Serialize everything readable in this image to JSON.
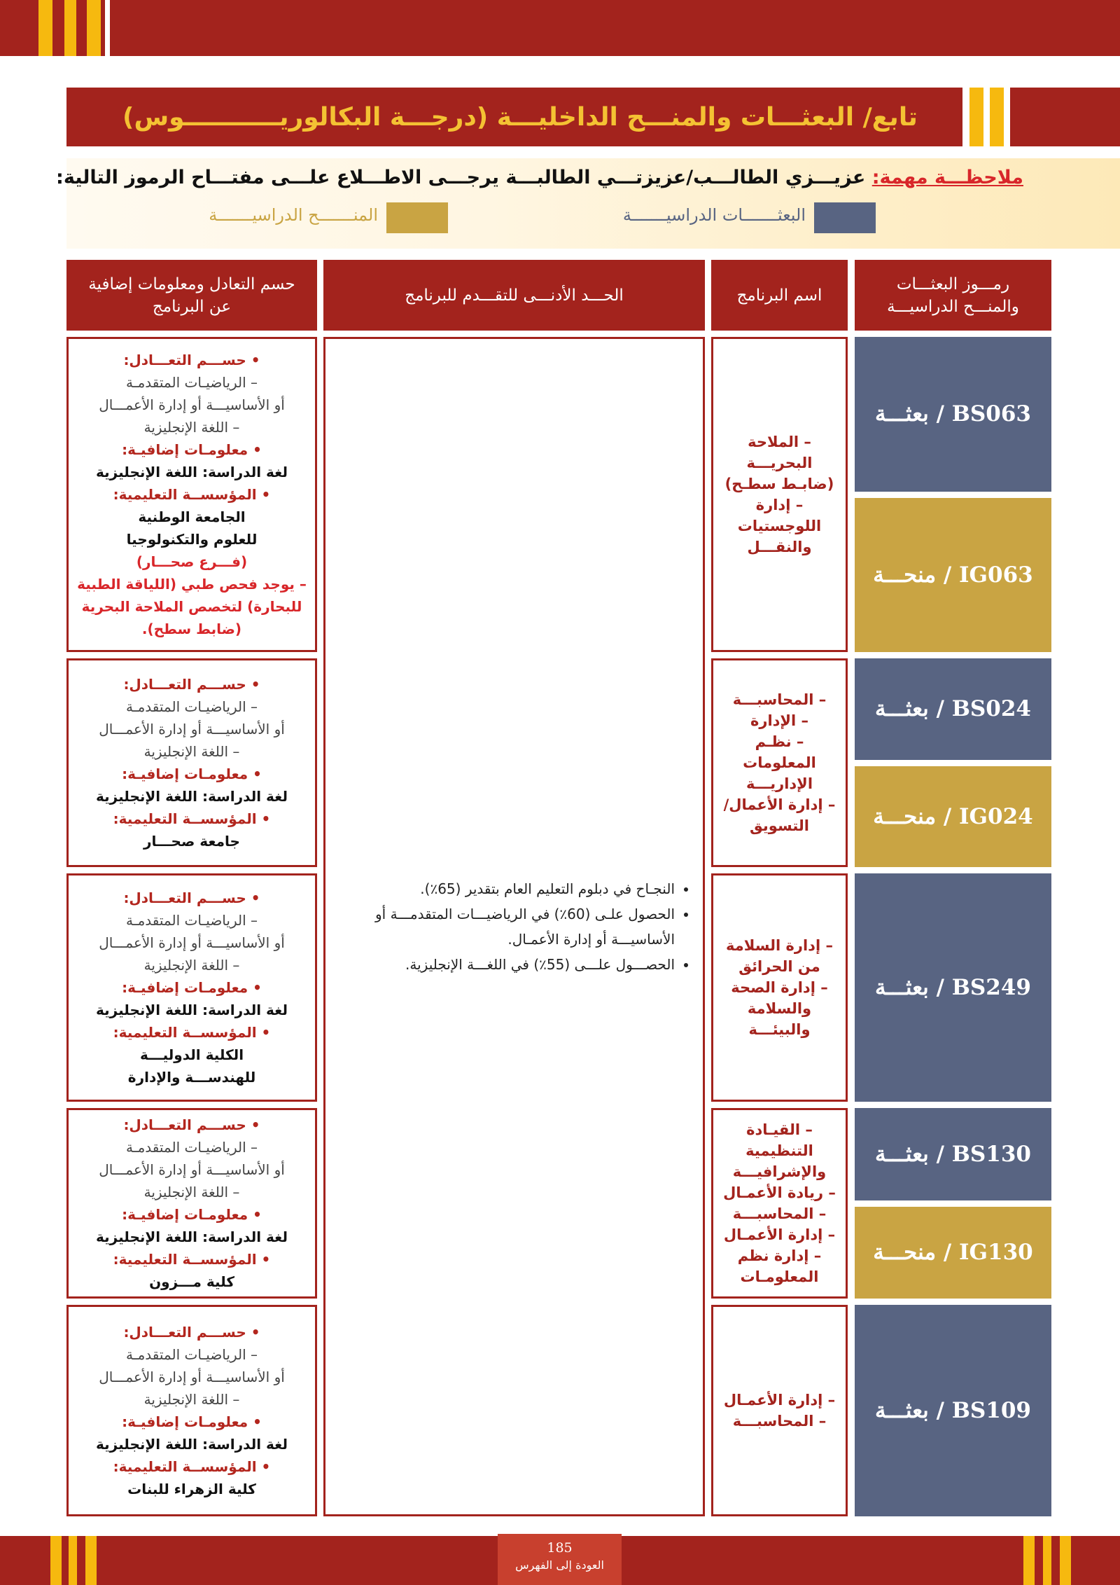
{
  "header": {
    "title": "تابع/ البعثـــات والمنـــح الداخليـــة (درجـــة البكالوريـــــــــــوس)"
  },
  "note": {
    "label": "ملاحظـــة مهمة:",
    "text": "عزيـــزي الطالـــب/عزيزتـــي الطالبـــة يرجـــى الاطـــلاع علـــى مفتـــاح الرموز التالية:",
    "legend": [
      {
        "text": "البعثـــــــات الدراسيـــــــة",
        "color": "#586482"
      },
      {
        "text": "المنـــــــح الدراسيـــــــة",
        "color": "#c9a443"
      }
    ]
  },
  "table": {
    "headers": [
      "رمـــوز البعثـــات والمنـــح الدراسيـــة",
      "اسم البرنامج",
      "الحـــد الأدنـــى للتقـــدم للبرنامج",
      "حسم التعادل ومعلومات إضافية عن البرنامج"
    ],
    "requirements": [
      "النجـاح في دبلوم التعليم العام بتقدير (65٪).",
      "الحصول علـى (60٪) في الرياضيـــات المتقدمـــة أو الأساسيـــة أو إدارة الأعمـال.",
      "الحصـــول علـــى (55٪) في اللغـــة الإنجليزية."
    ],
    "rows": [
      {
        "codes": [
          {
            "text": "BS063 / بعثـــة",
            "color": "#586482"
          },
          {
            "text": "IG063 / منحـــة",
            "color": "#c9a443"
          }
        ],
        "programs": [
          "– الملاحة البحريـــة",
          "(ضابـط سطـح)",
          "– إدارة اللوجستيات والنقـــل"
        ],
        "equivalence_label": "• حســـم التعـــادل:",
        "equivalence": [
          "– الرياضيـات المتقدمـة",
          "أو الأساسيـــة أو إدارة الأعمـــال",
          "– اللغة الإنجليزية"
        ],
        "additional_label": "• معلومـات إضافيـة:",
        "language": "لغة الدراسة: اللغة الإنجليزية",
        "institution_label": "• المؤسســة التعليمية:",
        "institution": [
          "الجامعة الوطنية",
          "للعلوم والتكنولوجيا"
        ],
        "notes": [
          "(فـــرع صحـــار)",
          "– يوجد فحص طبي (اللياقة الطبية للبحارة) لتخصص الملاحة البحرية (ضابط سطح)."
        ]
      },
      {
        "codes": [
          {
            "text": "BS024 / بعثـــة",
            "color": "#586482"
          },
          {
            "text": "IG024 / منحـــة",
            "color": "#c9a443"
          }
        ],
        "programs": [
          "– المحاسبـــة",
          "– الإدارة",
          "– نظـم المعلومات الإداريـــة",
          "– إدارة الأعمال/ التسويق"
        ],
        "equivalence_label": "• حســـم التعـــادل:",
        "equivalence": [
          "– الرياضيـات المتقدمـة",
          "أو الأساسيـــة أو إدارة الأعمـــال",
          "– اللغة الإنجليزية"
        ],
        "additional_label": "• معلومـات إضافيـة:",
        "language": "لغة الدراسة: اللغة الإنجليزية",
        "institution_label": "• المؤسســة التعليمية:",
        "institution": [
          "جامعة صحـــار"
        ],
        "notes": []
      },
      {
        "codes": [
          {
            "text": "BS249 / بعثـــة",
            "color": "#586482"
          }
        ],
        "programs": [
          "– إدارة السلامة من الحرائق",
          "– إدارة الصحة والسلامة والبيئـــة"
        ],
        "equivalence_label": "• حســـم التعـــادل:",
        "equivalence": [
          "– الرياضيـات المتقدمـة",
          "أو الأساسيـــة أو إدارة الأعمـــال",
          "– اللغة الإنجليزية"
        ],
        "additional_label": "• معلومـات إضافيـة:",
        "language": "لغة الدراسة: اللغة الإنجليزية",
        "institution_label": "• المؤسســة التعليمية:",
        "institution": [
          "الكلية الدوليـــة",
          "للهندســـة والإدارة"
        ],
        "notes": []
      },
      {
        "codes": [
          {
            "text": "BS130 / بعثـــة",
            "color": "#586482"
          },
          {
            "text": "IG130 / منحـــة",
            "color": "#c9a443"
          }
        ],
        "programs": [
          "– القيـادة التنظيمية والإشرافيـــة",
          "– ريادة الأعمـال",
          "– المحاسبـــة",
          "– إدارة الأعمـال",
          "– إدارة نظم المعلومـات"
        ],
        "equivalence_label": "• حســـم التعـــادل:",
        "equivalence": [
          "– الرياضيـات المتقدمـة",
          "أو الأساسيـــة أو إدارة الأعمـــال",
          "– اللغة الإنجليزية"
        ],
        "additional_label": "• معلومـات إضافيـة:",
        "language": "لغة الدراسة: اللغة الإنجليزية",
        "institution_label": "• المؤسســة التعليمية:",
        "institution": [
          "كلية مـــزون"
        ],
        "notes": []
      },
      {
        "codes": [
          {
            "text": "BS109 / بعثـــة",
            "color": "#586482"
          }
        ],
        "programs": [
          "– إدارة الأعمـال",
          "– المحاسبـــة"
        ],
        "equivalence_label": "• حســـم التعـــادل:",
        "equivalence": [
          "– الرياضيـات المتقدمـة",
          "أو الأساسيـــة أو إدارة الأعمـــال",
          "– اللغة الإنجليزية"
        ],
        "additional_label": "• معلومـات إضافيـة:",
        "language": "لغة الدراسة: اللغة الإنجليزية",
        "institution_label": "• المؤسســة التعليمية:",
        "institution": [
          "كلية الزهراء للبنات"
        ],
        "notes": []
      }
    ]
  },
  "footer": {
    "page": "185",
    "link": "العودة إلى الفهرس"
  }
}
